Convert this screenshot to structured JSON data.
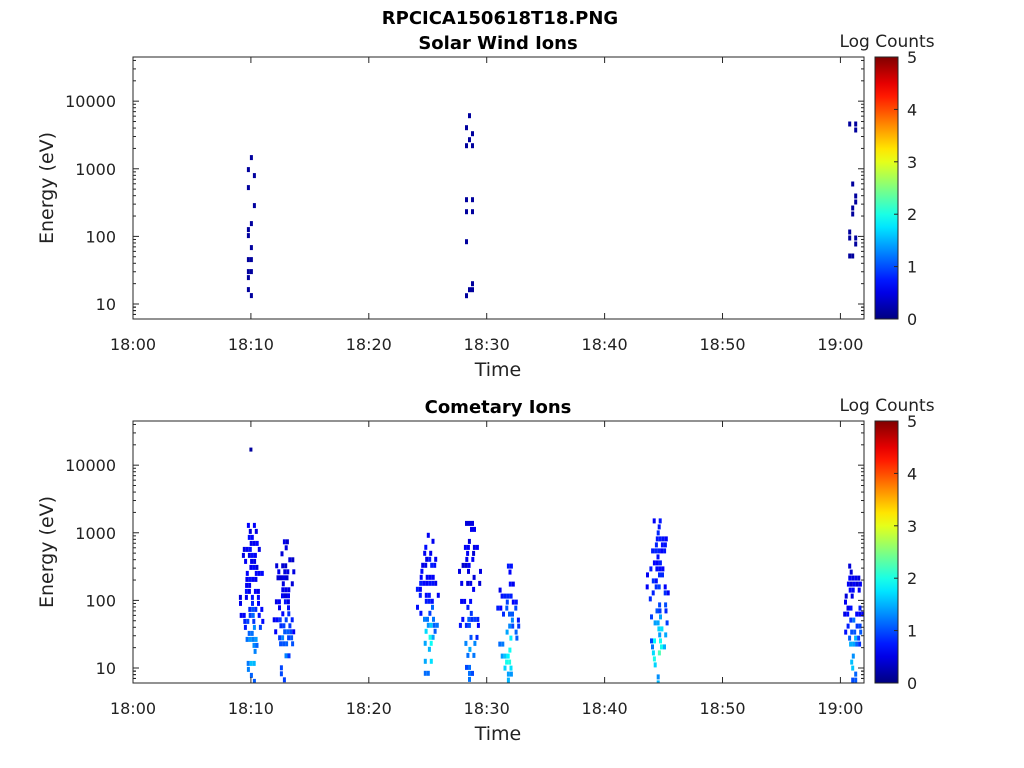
{
  "figure": {
    "title": "RPCICA150618T18.PNG"
  },
  "colorbar": {
    "label": "Log Counts",
    "range": [
      0,
      5
    ],
    "ticks": [
      "0",
      "1",
      "2",
      "3",
      "4",
      "5"
    ],
    "colormap": "jet"
  },
  "chart_data": [
    {
      "type": "heatmap",
      "title": "Solar Wind Ions",
      "xlabel": "Time",
      "ylabel": "Energy (eV)",
      "x_ticks": [
        "18:00",
        "18:10",
        "18:20",
        "18:30",
        "18:40",
        "18:50",
        "19:00"
      ],
      "xlim": [
        "18:00",
        "19:02"
      ],
      "y_ticks": [
        "10",
        "100",
        "1000",
        "10000"
      ],
      "ylim": [
        6,
        45000
      ],
      "y_scale": "log",
      "grid": false,
      "clim": [
        0,
        5
      ],
      "clusters": [
        {
          "time": "18:10",
          "emin": 12,
          "emax": 2400,
          "max_log_counts": 0.3
        },
        {
          "time": "18:28.5",
          "emin": 12,
          "emax": 10000,
          "max_log_counts": 0.3
        },
        {
          "time": "19:01",
          "emin": 18,
          "emax": 5000,
          "max_log_counts": 0.3
        }
      ]
    },
    {
      "type": "heatmap",
      "title": "Cometary Ions",
      "xlabel": "Time",
      "ylabel": "Energy (eV)",
      "x_ticks": [
        "18:00",
        "18:10",
        "18:20",
        "18:30",
        "18:40",
        "18:50",
        "19:00"
      ],
      "xlim": [
        "18:00",
        "19:02"
      ],
      "y_ticks": [
        "10",
        "100",
        "1000",
        "10000"
      ],
      "ylim": [
        6,
        45000
      ],
      "y_scale": "log",
      "grid": false,
      "clim": [
        0,
        5
      ],
      "clusters": [
        {
          "time": "18:10",
          "emin": 6,
          "emax": 1400,
          "max_log_counts": 1.8
        },
        {
          "time": "18:12.8",
          "emin": 7,
          "emax": 800,
          "max_log_counts": 1.4
        },
        {
          "time": "18:25",
          "emin": 8,
          "emax": 1000,
          "max_log_counts": 2.0
        },
        {
          "time": "18:28.5",
          "emin": 6,
          "emax": 1500,
          "max_log_counts": 1.6
        },
        {
          "time": "18:31.8",
          "emin": 6,
          "emax": 350,
          "max_log_counts": 2.0
        },
        {
          "time": "18:44.5",
          "emin": 6,
          "emax": 2000,
          "max_log_counts": 2.2
        },
        {
          "time": "19:01",
          "emin": 7,
          "emax": 350,
          "max_log_counts": 1.6
        }
      ],
      "outliers": [
        {
          "time": "18:10",
          "energy": 17000
        }
      ]
    }
  ]
}
